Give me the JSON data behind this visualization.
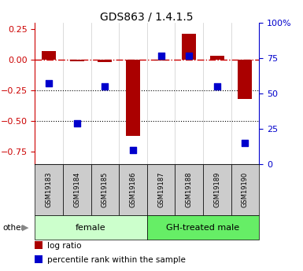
{
  "title": "GDS863 / 1.4.1.5",
  "samples": [
    "GSM19183",
    "GSM19184",
    "GSM19185",
    "GSM19186",
    "GSM19187",
    "GSM19188",
    "GSM19189",
    "GSM19190"
  ],
  "log_ratio": [
    0.07,
    -0.015,
    -0.02,
    -0.62,
    -0.005,
    0.21,
    0.03,
    -0.32
  ],
  "percentile_rank": [
    57,
    29,
    55,
    10,
    77,
    77,
    55,
    15
  ],
  "groups": [
    {
      "label": "female",
      "start": 0,
      "end": 4,
      "color": "#ccffcc"
    },
    {
      "label": "GH-treated male",
      "start": 4,
      "end": 8,
      "color": "#66ee66"
    }
  ],
  "bar_color": "#aa0000",
  "dot_color": "#0000cc",
  "ylim_left": [
    -0.85,
    0.3
  ],
  "ylim_right": [
    0,
    100
  ],
  "yticks_left": [
    0.25,
    0,
    -0.25,
    -0.5,
    -0.75
  ],
  "yticks_right": [
    100,
    75,
    50,
    25,
    0
  ],
  "hlines": [
    -0.25,
    -0.5
  ],
  "zero_line_color": "#cc0000",
  "zero_line_style": "-.",
  "hline_style": ":",
  "hline_color": "black",
  "right_axis_color": "#0000cc",
  "left_axis_color": "#cc0000",
  "other_label": "other",
  "legend_items": [
    {
      "label": "log ratio",
      "color": "#aa0000"
    },
    {
      "label": "percentile rank within the sample",
      "color": "#0000cc"
    }
  ],
  "bar_width": 0.5,
  "dot_size": 36,
  "sample_box_color": "#cccccc",
  "title_fontsize": 10
}
